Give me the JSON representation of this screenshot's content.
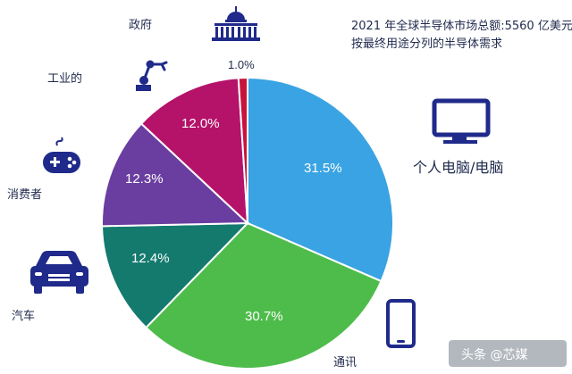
{
  "chart_data": {
    "type": "pie",
    "title": "2021 年全球半导体市场总额:5560 亿美元",
    "subtitle": "按最终用途分列的半导体需求",
    "start_angle_deg": 90,
    "direction": "clockwise",
    "slices": [
      {
        "label": "个人电脑/电脑",
        "value": 31.5,
        "display": "31.5%",
        "color": "#3aa3e3",
        "icon": "monitor-icon"
      },
      {
        "label": "通讯",
        "value": 30.7,
        "display": "30.7%",
        "color": "#4ebc4b",
        "icon": "smartphone-icon"
      },
      {
        "label": "汽车",
        "value": 12.4,
        "display": "12.4%",
        "color": "#147a6e",
        "icon": "car-icon"
      },
      {
        "label": "消费者",
        "value": 12.3,
        "display": "12.3%",
        "color": "#6a3ea0",
        "icon": "gamepad-icon"
      },
      {
        "label": "工业的",
        "value": 12.0,
        "display": "12.0%",
        "color": "#b5126a",
        "icon": "robot-arm-icon"
      },
      {
        "label": "政府",
        "value": 1.0,
        "display": "1.0%",
        "color": "#c8143c",
        "icon": "capitol-icon"
      }
    ]
  },
  "watermark": "头条 @芯媒",
  "icon_color": "#1f2a8a"
}
